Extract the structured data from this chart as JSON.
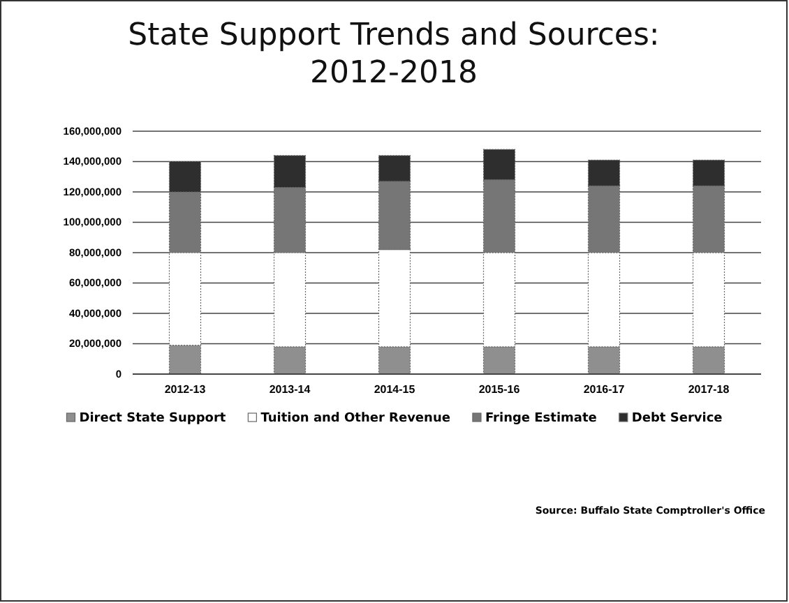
{
  "chart_data": {
    "type": "bar",
    "title": "State Support Trends and Sources: 2012-2018",
    "stacked": true,
    "categories": [
      "2012-13",
      "2013-14",
      "2014-15",
      "2015-16",
      "2016-17",
      "2017-18"
    ],
    "series": [
      {
        "name": "Direct State Support",
        "color": "#8f8f8f",
        "values": [
          19000000,
          18000000,
          18000000,
          18000000,
          18000000,
          18000000
        ]
      },
      {
        "name": "Tuition and Other Revenue",
        "color": "#ffffff",
        "values": [
          61000000,
          62000000,
          64000000,
          62000000,
          62000000,
          62000000
        ]
      },
      {
        "name": "Fringe Estimate",
        "color": "#767676",
        "values": [
          40000000,
          43000000,
          45000000,
          48000000,
          44000000,
          44000000
        ]
      },
      {
        "name": "Debt Service",
        "color": "#2e2e2e",
        "values": [
          20000000,
          21000000,
          17000000,
          20000000,
          17000000,
          17000000
        ]
      }
    ],
    "ylim": [
      0,
      160000000
    ],
    "yticks": [
      {
        "value": 0,
        "label": "0"
      },
      {
        "value": 20000000,
        "label": "20,000,000"
      },
      {
        "value": 40000000,
        "label": "40,000,000"
      },
      {
        "value": 60000000,
        "label": "60,000,000"
      },
      {
        "value": 80000000,
        "label": "80,000,000"
      },
      {
        "value": 100000000,
        "label": "100,000,000"
      },
      {
        "value": 120000000,
        "label": "120,000,000"
      },
      {
        "value": 140000000,
        "label": "140,000,000"
      },
      {
        "value": 160000000,
        "label": "160,000,000"
      }
    ],
    "grid": "y",
    "legend": "bottom",
    "annotations": [
      "Source: Buffalo State Comptroller's Office"
    ]
  }
}
